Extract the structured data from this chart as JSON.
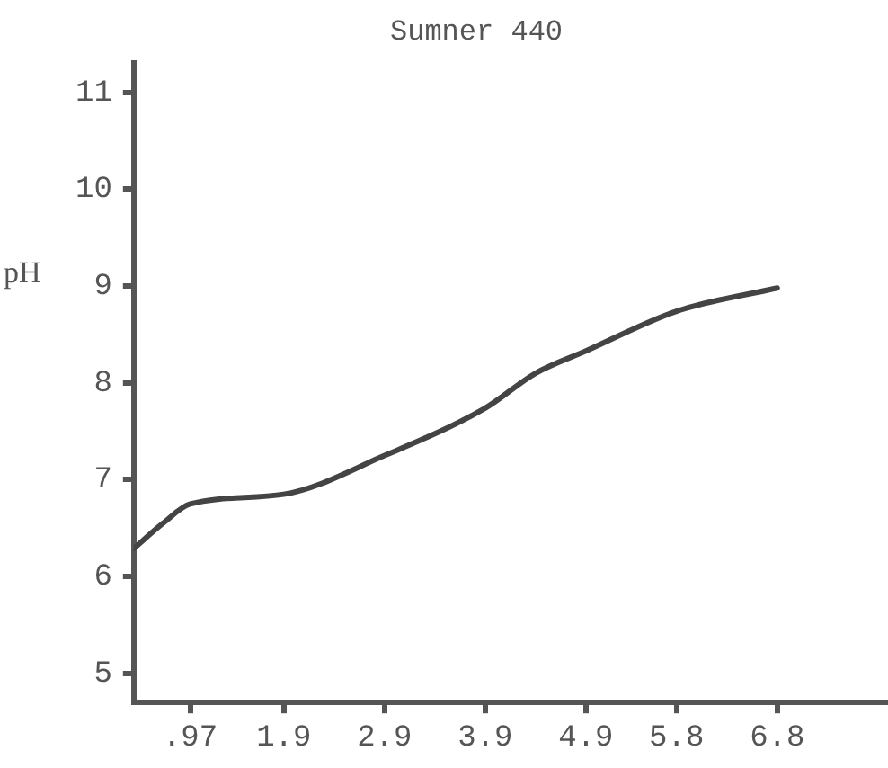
{
  "chart_data": {
    "type": "line",
    "title": "Sumner 440",
    "ylabel": "pH",
    "x": [
      0.41,
      0.7,
      0.97,
      1.9,
      2.9,
      3.9,
      4.4,
      4.9,
      5.8,
      6.8
    ],
    "series": [
      {
        "color": "#444444",
        "values": [
          6.29,
          6.55,
          6.75,
          6.85,
          7.25,
          7.74,
          8.1,
          8.33,
          8.74,
          8.98
        ]
      }
    ],
    "xlim": [
      0.41,
      7.9
    ],
    "xticks": [
      {
        "value": 0.97,
        "label": ".97"
      },
      1.9,
      2.9,
      3.9,
      4.9,
      5.8,
      6.8
    ],
    "ylim": [
      4.7,
      11.3
    ],
    "yticks": [
      5,
      6,
      7,
      8,
      9,
      10,
      11
    ],
    "grid": false,
    "legend": false,
    "marker": "none",
    "line_style": "solid"
  }
}
